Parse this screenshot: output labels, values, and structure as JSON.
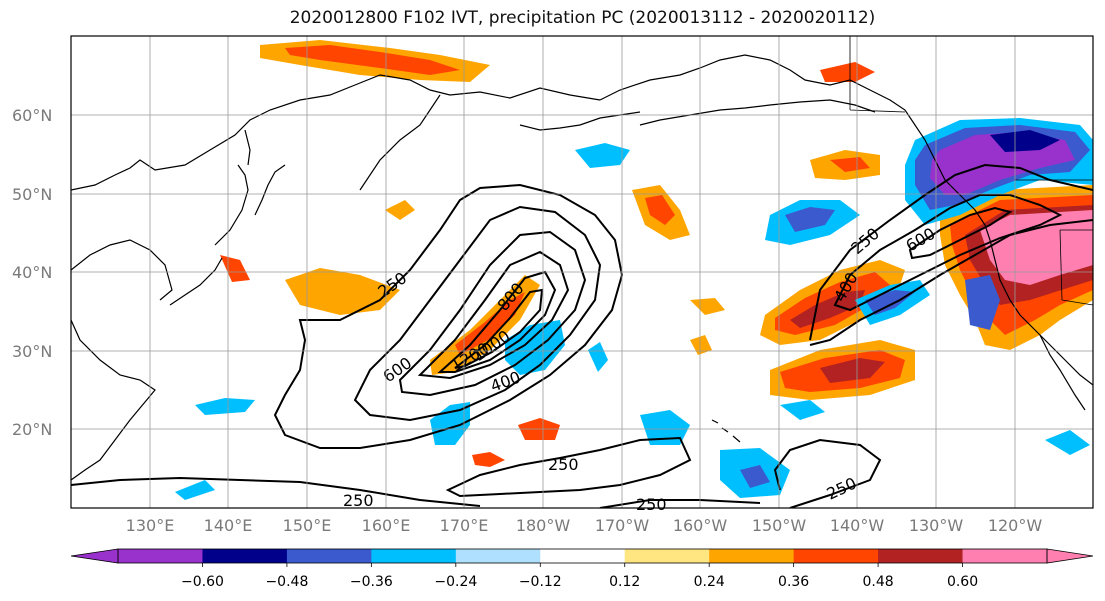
{
  "title": "2020012800 F102 IVT, precipitation PC (2020013112 - 2020020112)",
  "lat_labels": [
    "60°N",
    "50°N",
    "40°N",
    "30°N",
    "20°N"
  ],
  "lon_labels": [
    "130°E",
    "140°E",
    "150°E",
    "160°E",
    "170°E",
    "180°W",
    "170°W",
    "160°W",
    "150°W",
    "140°W",
    "130°W",
    "120°W"
  ],
  "contour_labels": [
    "250",
    "600",
    "800",
    "1200",
    "1000",
    "400",
    "250",
    "250",
    "250",
    "250",
    "250",
    "600",
    "400"
  ],
  "colorbar": {
    "ticks": [
      "−0.60",
      "−0.48",
      "−0.36",
      "−0.24",
      "−0.12",
      "0.12",
      "0.24",
      "0.36",
      "0.48",
      "0.60"
    ],
    "colors": [
      "#9932CC",
      "#00008B",
      "#3A5ACD",
      "#00BFFF",
      "#B0E0FF",
      "#FFFFFF",
      "#FFE680",
      "#FFA500",
      "#FF4500",
      "#B22222",
      "#FF80B0"
    ]
  }
}
